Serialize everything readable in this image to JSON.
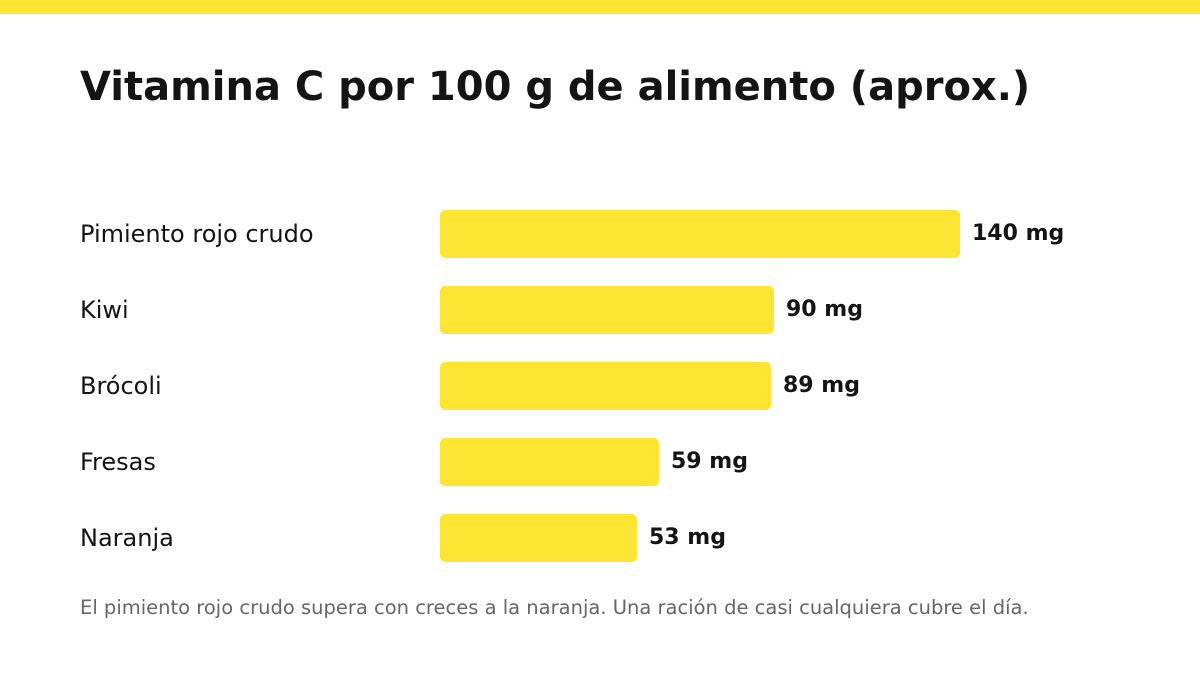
{
  "colors": {
    "accent": "#FEE433",
    "text": "#141414",
    "note": "#666666",
    "background": "#FFFFFF"
  },
  "chart_data": {
    "type": "bar",
    "orientation": "horizontal",
    "title": "Vitamina C por 100 g de alimento (aprox.)",
    "categories": [
      "Pimiento rojo crudo",
      "Kiwi",
      "Brócoli",
      "Fresas",
      "Naranja"
    ],
    "values": [
      140,
      90,
      89,
      59,
      53
    ],
    "value_labels": [
      "140 mg",
      "90 mg",
      "89 mg",
      "59 mg",
      "53 mg"
    ],
    "unit": "mg",
    "xlim": [
      0,
      140
    ],
    "grid": false,
    "note": "El pimiento rojo crudo supera con creces a la naranja. Una ración de casi cualquiera cubre el día."
  }
}
